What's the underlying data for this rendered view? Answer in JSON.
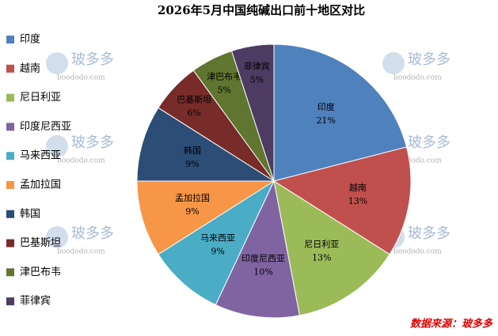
{
  "chart_data": {
    "type": "pie",
    "title": "2026年5月中国纯碱出口前十地区对比",
    "categories": [
      "印度",
      "越南",
      "尼日利亚",
      "印度尼西亚",
      "马来西亚",
      "孟加拉国",
      "韩国",
      "巴基斯坦",
      "津巴布韦",
      "菲律宾"
    ],
    "values": [
      21,
      13,
      13,
      10,
      9,
      9,
      9,
      6,
      5,
      5
    ],
    "value_labels": [
      "21%",
      "13%",
      "13%",
      "10%",
      "9%",
      "9%",
      "9%",
      "6%",
      "5%",
      "5%"
    ],
    "colors": [
      "#4f81bd",
      "#c0504d",
      "#9bbb59",
      "#8064a2",
      "#4bacc6",
      "#f79646",
      "#2c4d75",
      "#772c2a",
      "#5f7530",
      "#4d3b62"
    ],
    "legend": "left",
    "source": "数据来源：玻多多",
    "watermark": {
      "name": "玻多多",
      "url": "boododo.com"
    }
  }
}
